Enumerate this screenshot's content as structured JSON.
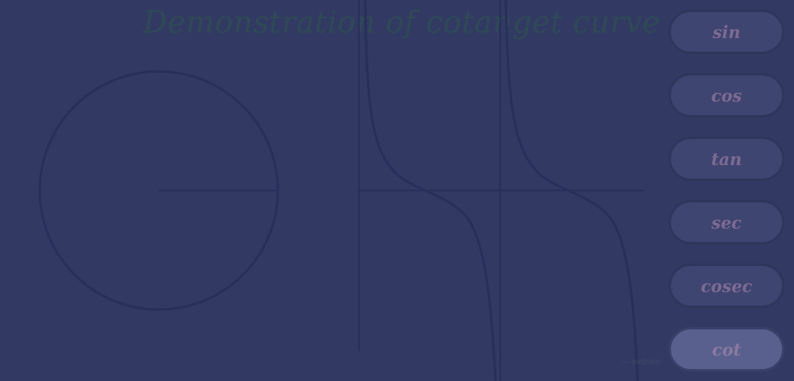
{
  "title": "Demonstration of cotanget curve",
  "buttons": [
    "sin",
    "cos",
    "tan",
    "sec",
    "cosec",
    "cot"
  ],
  "active_button": "cot",
  "credit": "— svdram",
  "colors": {
    "background": "#323a63",
    "lines": "#27305a",
    "title": "#2e4a55",
    "button_bg": "#3e4570",
    "button_active_bg": "#5a608e",
    "button_text": "#7d6a92"
  }
}
